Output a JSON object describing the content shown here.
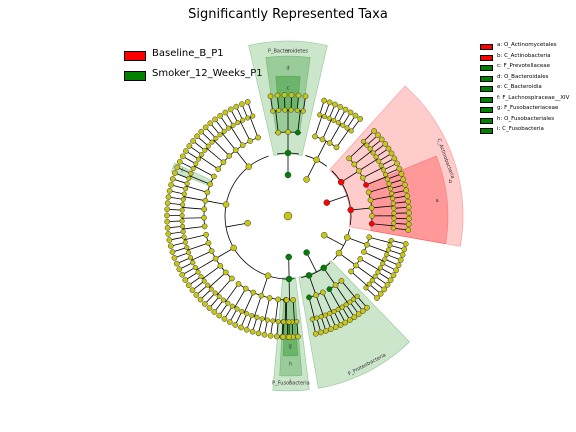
{
  "chart_data": {
    "type": "cladogram",
    "title": "Significantly Represented Taxa",
    "groups": [
      {
        "name": "Baseline_B_P1",
        "color": "#ff0000"
      },
      {
        "name": "Smoker_12_Weeks_P1",
        "color": "#008000"
      }
    ],
    "biomarkers": [
      {
        "key": "a",
        "label": "a: O_Actinomycetales",
        "group": "Baseline_B_P1",
        "color": "#ff0000"
      },
      {
        "key": "b",
        "label": "b: C_Actinobacteria",
        "group": "Baseline_B_P1",
        "color": "#ff0000"
      },
      {
        "key": "c",
        "label": "c: F_Prevotellaceae",
        "group": "Smoker_12_Weeks_P1",
        "color": "#008000"
      },
      {
        "key": "d",
        "label": "d: O_Bacteroidales",
        "group": "Smoker_12_Weeks_P1",
        "color": "#008000"
      },
      {
        "key": "e",
        "label": "e: C_Bacteroidia",
        "group": "Smoker_12_Weeks_P1",
        "color": "#008000"
      },
      {
        "key": "f",
        "label": "f: F_Lachnospiraceae__XIV",
        "group": "Smoker_12_Weeks_P1",
        "color": "#008000"
      },
      {
        "key": "g",
        "label": "g: F_Fusobacteriaceae",
        "group": "Smoker_12_Weeks_P1",
        "color": "#008000"
      },
      {
        "key": "h",
        "label": "h: O_Fusobacteriales",
        "group": "Smoker_12_Weeks_P1",
        "color": "#008000"
      },
      {
        "key": "i",
        "label": "i: C_Fusobacteria",
        "group": "Smoker_12_Weeks_P1",
        "color": "#008000"
      }
    ],
    "phylum_labels": [
      {
        "label": "P_Bacteroidetes",
        "group": "Smoker_12_Weeks_P1"
      },
      {
        "label": "C_Actinobacteria",
        "group": "Baseline_B_P1"
      },
      {
        "label": "P_Fusobacteria",
        "group": "Smoker_12_Weeks_P1"
      },
      {
        "label": "P_Proteobacteria",
        "group": "Smoker_12_Weeks_P1"
      }
    ],
    "clade_letters": [
      "a",
      "b",
      "c",
      "d",
      "e",
      "f",
      "g",
      "h",
      "i"
    ],
    "colors": {
      "red": "#ff0000",
      "green": "#008000",
      "node_default": "#c8c814",
      "edge": "#000000"
    }
  }
}
